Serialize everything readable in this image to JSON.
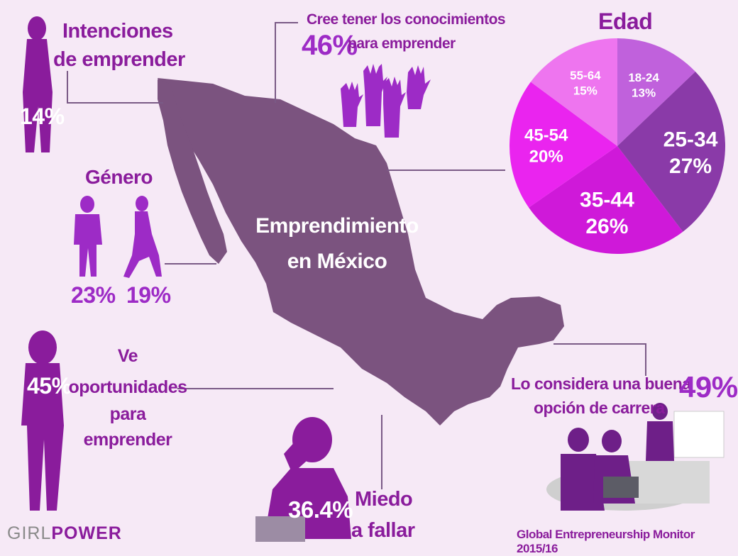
{
  "colors": {
    "background": "#f6e9f6",
    "map": "#7b537f",
    "accent_purple": "#8a1c9c",
    "accent_violet": "#9d2bc6"
  },
  "map": {
    "title_line1": "Emprendimiento",
    "title_line2": "en México"
  },
  "intenciones": {
    "label_line1": "Intenciones",
    "label_line2": "de emprender",
    "value": "14%"
  },
  "conocimientos": {
    "label_line1": "Cree tener los conocimientos",
    "label_line2": "para emprender",
    "value": "46%"
  },
  "genero": {
    "label": "Género",
    "male_value": "23%",
    "female_value": "19%"
  },
  "oportunidades": {
    "value": "45%",
    "label_lines": [
      "Ve",
      "oportunidades",
      "para",
      "emprender"
    ]
  },
  "miedo": {
    "value": "36.4%",
    "label_line1": "Miedo",
    "label_line2": "a fallar"
  },
  "carrera": {
    "label_line1": "Lo considera una buena",
    "label_line2": "opción de carrera",
    "value": "49%"
  },
  "edad": {
    "title": "Edad",
    "slices": [
      {
        "range": "18-24",
        "pct": "13%",
        "value": 13,
        "color": "#c061dc"
      },
      {
        "range": "25-34",
        "pct": "27%",
        "value": 27,
        "color": "#8a3aa8"
      },
      {
        "range": "35-44",
        "pct": "26%",
        "value": 26,
        "color": "#cf19d9"
      },
      {
        "range": "45-54",
        "pct": "20%",
        "value": 20,
        "color": "#ea24ef"
      },
      {
        "range": "55-64",
        "pct": "15%",
        "value": 15,
        "color": "#ee75ef"
      }
    ]
  },
  "footer": {
    "brand_part1": "GIRL",
    "brand_part2": "POWER",
    "source": "Global Entrepreneurship Monitor 2015/16"
  }
}
